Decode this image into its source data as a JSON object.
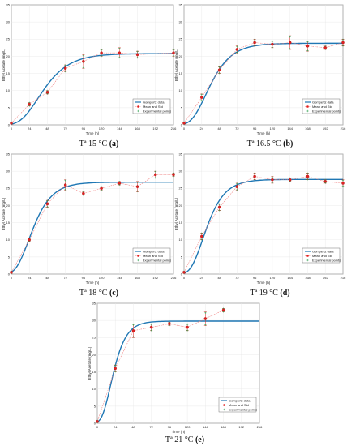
{
  "chart_data": [
    {
      "type": "line",
      "caption": "Tª 15 °C",
      "caption_letter": "(a)",
      "xlabel": "Time (h)",
      "ylabel": "Ethyl Acetate (mg/L)",
      "xlim": [
        0,
        216
      ],
      "ylim": [
        0,
        35
      ],
      "xticks": [
        0,
        24,
        48,
        72,
        96,
        120,
        144,
        168,
        192,
        216
      ],
      "yticks": [
        0,
        5,
        10,
        15,
        20,
        25,
        30,
        35
      ],
      "grid": true,
      "legend_position": "lower-right",
      "legend": [
        "Gompertz data",
        "Mean and Std",
        "Experimental points"
      ],
      "x": [
        0,
        24,
        48,
        72,
        96,
        120,
        144,
        168,
        216
      ],
      "mean": [
        0.5,
        6,
        9.5,
        16.5,
        18.5,
        21,
        21,
        20.5,
        21
      ],
      "std": [
        0.3,
        0.5,
        0.5,
        1,
        2,
        1,
        1.5,
        1,
        1
      ],
      "model": {
        "A": 20.8,
        "um": 0.33,
        "lambda": 12
      }
    },
    {
      "type": "line",
      "caption": "Tª 16.5 °C",
      "caption_letter": "(b)",
      "xlabel": "Time (h)",
      "ylabel": "Ethyl Acetate (mg/L)",
      "xlim": [
        0,
        216
      ],
      "ylim": [
        0,
        35
      ],
      "xticks": [
        0,
        24,
        48,
        72,
        96,
        120,
        144,
        168,
        192,
        216
      ],
      "yticks": [
        0,
        5,
        10,
        15,
        20,
        25,
        30,
        35
      ],
      "grid": true,
      "legend_position": "lower-right",
      "legend": [
        "Gompertz data",
        "Mean and Std",
        "Experimental points"
      ],
      "x": [
        0,
        24,
        48,
        72,
        96,
        120,
        144,
        168,
        192,
        216
      ],
      "mean": [
        0.5,
        8,
        16,
        22,
        24,
        23.5,
        24,
        23,
        22.5,
        24
      ],
      "std": [
        0.3,
        1,
        1,
        1,
        1,
        1,
        2,
        1.5,
        0.5,
        1
      ],
      "model": {
        "A": 23.8,
        "um": 0.45,
        "lambda": 10
      }
    },
    {
      "type": "line",
      "caption": "Tª 18 °C",
      "caption_letter": "(c)",
      "xlabel": "Time (h)",
      "ylabel": "Ethyl Acetate (mg/L)",
      "xlim": [
        0,
        216
      ],
      "ylim": [
        0,
        35
      ],
      "xticks": [
        0,
        24,
        48,
        72,
        96,
        120,
        144,
        168,
        192,
        216
      ],
      "yticks": [
        0,
        5,
        10,
        15,
        20,
        25,
        30,
        35
      ],
      "grid": true,
      "legend_position": "lower-right",
      "legend": [
        "Gompertz data",
        "Mean and Std",
        "Experimental points"
      ],
      "x": [
        0,
        24,
        48,
        72,
        96,
        120,
        144,
        168,
        192,
        216
      ],
      "mean": [
        0.5,
        10,
        20.5,
        26,
        23.5,
        25,
        26.5,
        25.5,
        29,
        29
      ],
      "std": [
        0.3,
        0.5,
        1,
        1.5,
        0.5,
        0.5,
        0.5,
        1.5,
        1,
        0.5
      ],
      "model": {
        "A": 26.8,
        "um": 0.58,
        "lambda": 6
      }
    },
    {
      "type": "line",
      "caption": "Tª 19 °C",
      "caption_letter": "(d)",
      "xlabel": "Time (h)",
      "ylabel": "Ethyl Acetate (mg/L)",
      "xlim": [
        0,
        216
      ],
      "ylim": [
        0,
        35
      ],
      "xticks": [
        0,
        24,
        48,
        72,
        96,
        120,
        144,
        168,
        192,
        216
      ],
      "yticks": [
        0,
        5,
        10,
        15,
        20,
        25,
        30,
        35
      ],
      "grid": true,
      "legend_position": "lower-right",
      "legend": [
        "Gompertz data",
        "Mean and Std",
        "Experimental points"
      ],
      "x": [
        0,
        24,
        48,
        72,
        96,
        120,
        144,
        168,
        192,
        216
      ],
      "mean": [
        0.5,
        11,
        19.5,
        25.5,
        28.5,
        27.5,
        27.5,
        28.5,
        27,
        26.5
      ],
      "std": [
        0.3,
        1,
        1,
        1,
        1,
        1,
        0.5,
        1,
        0.5,
        1
      ],
      "model": {
        "A": 27.6,
        "um": 0.62,
        "lambda": 9
      }
    },
    {
      "type": "line",
      "caption": "Tª 21 °C",
      "caption_letter": "(e)",
      "xlabel": "Time (h)",
      "ylabel": "Ethyl Acetate (mg/L)",
      "xlim": [
        0,
        216
      ],
      "ylim": [
        0,
        35
      ],
      "xticks": [
        0,
        24,
        48,
        72,
        96,
        120,
        144,
        168,
        192,
        216
      ],
      "yticks": [
        0,
        5,
        10,
        15,
        20,
        25,
        30,
        35
      ],
      "grid": true,
      "legend_position": "lower-right",
      "legend": [
        "Gompertz data",
        "Mean and Std",
        "Experimental points"
      ],
      "x": [
        0,
        24,
        48,
        72,
        96,
        120,
        144,
        168
      ],
      "mean": [
        0.5,
        16,
        27,
        28,
        29,
        28,
        30.5,
        33
      ],
      "std": [
        0.3,
        1,
        2,
        1,
        0.5,
        1,
        2,
        0.5
      ],
      "model": {
        "A": 29.8,
        "um": 0.95,
        "lambda": 6
      }
    }
  ],
  "colors": {
    "model_line": "#1f77b4",
    "mean_marker": "#e02020",
    "mean_line": "#f08080",
    "experimental": "#2a9d4a",
    "grid": "#e6e6e6",
    "axis": "#444444"
  }
}
